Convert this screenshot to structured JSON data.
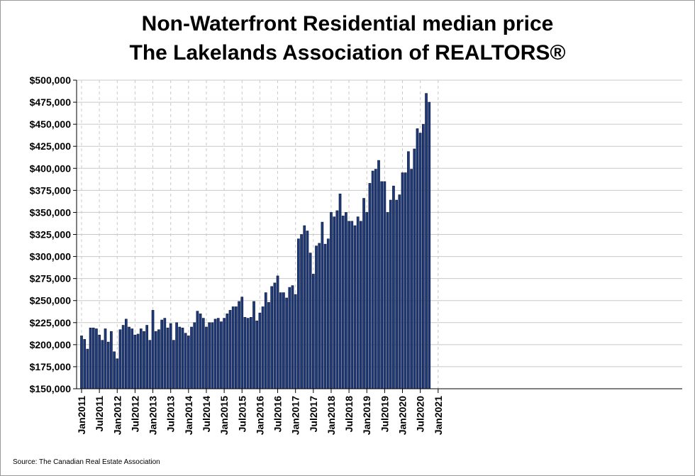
{
  "chart_data": {
    "type": "bar",
    "title": "Non-Waterfront Residential median price",
    "subtitle": "The Lakelands Association of REALTORS®",
    "source": "Source: The Canadian Real Estate Association",
    "xlabel": "",
    "ylabel": "",
    "ylim": [
      150000,
      500000
    ],
    "y_ticks": [
      "$150,000",
      "$175,000",
      "$200,000",
      "$225,000",
      "$250,000",
      "$275,000",
      "$300,000",
      "$325,000",
      "$350,000",
      "$375,000",
      "$400,000",
      "$425,000",
      "$450,000",
      "$475,000",
      "$500,000"
    ],
    "x_ticks": [
      "Jan2011",
      "Jul2011",
      "Jan2012",
      "Jul2012",
      "Jan2013",
      "Jul2013",
      "Jan2014",
      "Jul2014",
      "Jan2015",
      "Jul2015",
      "Jan2016",
      "Jul2016",
      "Jan2017",
      "Jul2017",
      "Jan2018",
      "Jul2018",
      "Jan2019",
      "Jul2019",
      "Jan2020",
      "Jul2020",
      "Jan2021"
    ],
    "start_month": "2011-01",
    "grid": true,
    "colors": {
      "bar_fill": "#1f3a7a",
      "bar_stroke": "#0b1838",
      "grid": "#c8c8c8"
    },
    "values": [
      210000,
      206000,
      195000,
      219000,
      219000,
      218000,
      211000,
      205000,
      218000,
      203000,
      215000,
      192000,
      184000,
      217000,
      222000,
      229000,
      220000,
      218000,
      211000,
      212000,
      218000,
      215000,
      222000,
      205000,
      239000,
      215000,
      217000,
      228000,
      230000,
      219000,
      224000,
      205000,
      225000,
      220000,
      219000,
      213000,
      210000,
      220000,
      225000,
      238000,
      235000,
      230000,
      220000,
      225000,
      225000,
      229000,
      230000,
      226000,
      230000,
      235000,
      239000,
      243000,
      243000,
      249000,
      254000,
      231000,
      230000,
      231000,
      249000,
      227000,
      236000,
      243000,
      259000,
      248000,
      266000,
      270000,
      278000,
      259000,
      259000,
      253000,
      265000,
      267000,
      257000,
      320000,
      325000,
      335000,
      329000,
      304000,
      280000,
      312000,
      315000,
      339000,
      314000,
      320000,
      350000,
      345000,
      352000,
      371000,
      346000,
      350000,
      340000,
      340000,
      335000,
      345000,
      340000,
      366000,
      350000,
      383000,
      397000,
      399000,
      409000,
      385000,
      385000,
      350000,
      364000,
      380000,
      364000,
      370000,
      395000,
      395000,
      419000,
      399000,
      422000,
      445000,
      440000,
      450000,
      485000,
      475000
    ]
  }
}
